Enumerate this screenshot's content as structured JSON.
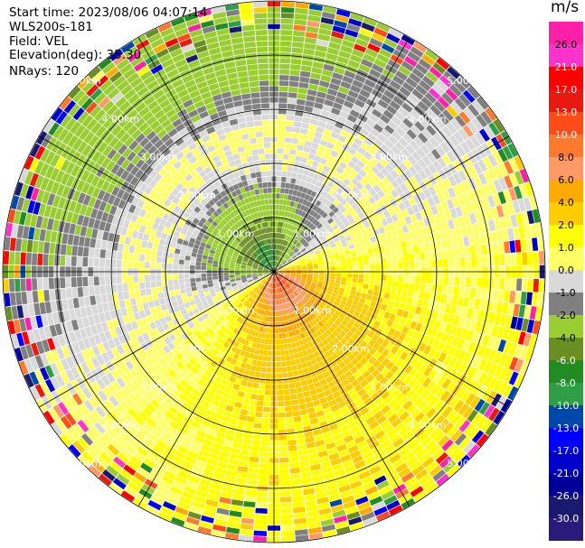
{
  "header": {
    "start_time": "Start time: 2023/08/06 04:07:14",
    "instrument": "WLS200s-181",
    "field": "Field: VEL",
    "elevation": "Elevation(deg): 35.30",
    "nrays": "NRays: 120"
  },
  "colorbar": {
    "unit": "m/s",
    "tick_labels": [
      "26.0",
      "21.0",
      "17.0",
      "13.0",
      "10.0",
      "8.0",
      "6.0",
      "4.0",
      "2.0",
      "1.0",
      "0.0",
      "-1.0",
      "-2.0",
      "-4.0",
      "-6.0",
      "-8.0",
      "-10.0",
      "-13.0",
      "-17.0",
      "-21.0",
      "-26.0",
      "-30.0"
    ],
    "colors": [
      "#ff1fa8",
      "#ff33cc",
      "#ff0000",
      "#e8190f",
      "#ff4a1a",
      "#ff7a2e",
      "#ff9966",
      "#ffaa00",
      "#ffcc00",
      "#ffff00",
      "#ffff66",
      "#d9d9d9",
      "#808080",
      "#9acd32",
      "#6b8e23",
      "#228b22",
      "#2f9e44",
      "#0047ab",
      "#0000ff",
      "#0000cd",
      "#000099",
      "#191970",
      "#2a1a7a"
    ]
  },
  "chart_data": {
    "type": "heatmap",
    "title": "",
    "field": "VEL",
    "unit": "m/s",
    "elevation_deg": 35.3,
    "n_rays": 120,
    "range_ring_labels": [
      "1.00km",
      "2.00km",
      "3.00km",
      "4.00km",
      "5.00km"
    ],
    "range_rings_km": [
      1,
      2,
      3,
      4,
      5
    ],
    "max_range_km": 5.0,
    "color_levels": [
      -30,
      -26,
      -21,
      -17,
      -13,
      -10,
      -8,
      -6,
      -4,
      -2,
      -1,
      0,
      1,
      2,
      4,
      6,
      8,
      10,
      13,
      17,
      21,
      26
    ],
    "radial_profile": [
      {
        "range_km": 0.3,
        "approach_side_ms": -6.0,
        "recede_side_ms": 9.0
      },
      {
        "range_km": 0.8,
        "approach_side_ms": -4.0,
        "recede_side_ms": 5.0
      },
      {
        "range_km": 1.3,
        "approach_side_ms": -2.5,
        "recede_side_ms": 3.0
      },
      {
        "range_km": 1.9,
        "approach_side_ms": -0.3,
        "recede_side_ms": 2.5
      },
      {
        "range_km": 2.6,
        "approach_side_ms": 0.3,
        "recede_side_ms": 2.0
      },
      {
        "range_km": 3.2,
        "approach_side_ms": -1.5,
        "recede_side_ms": 1.5
      },
      {
        "range_km": 3.8,
        "approach_side_ms": -2.5,
        "recede_side_ms": 1.5
      },
      {
        "range_km": 4.5,
        "approach_side_ms": -3.0,
        "recede_side_ms": 1.5
      },
      {
        "range_km": 5.0,
        "approach_side_ms": -3.0,
        "recede_side_ms": 1.5
      }
    ]
  }
}
